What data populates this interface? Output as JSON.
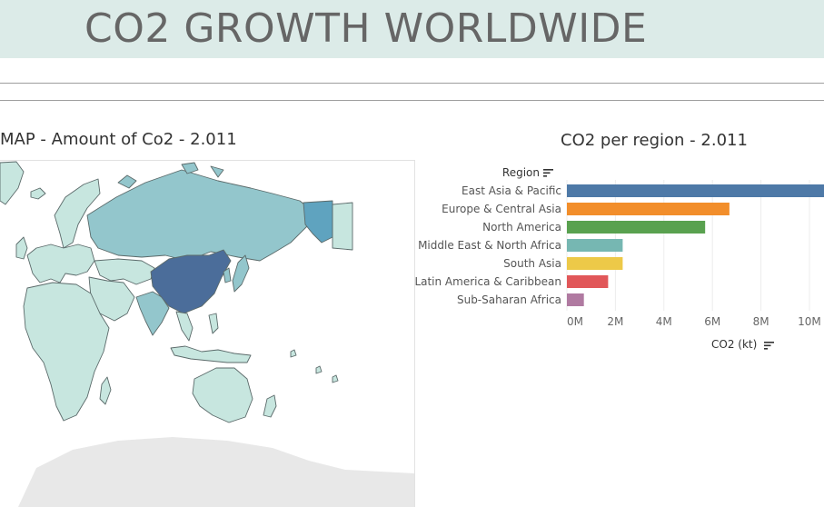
{
  "header": {
    "title": "CO2 GROWTH WORLDWIDE"
  },
  "map": {
    "title": "MAP - Amount of Co2  - 2.011",
    "colors": {
      "low": "#c7e6df",
      "mid": "#93c6cc",
      "high": "#5fa3bf",
      "max": "#4b6d9a",
      "land_outline": "#5b6a6a",
      "antarctica": "#e8e8e8"
    }
  },
  "chart_data": {
    "type": "bar",
    "orientation": "horizontal",
    "title": "CO2 per region - 2.011",
    "dimension_label": "Region",
    "xlabel": "CO2 (kt)",
    "categories": [
      "East Asia & Pacific",
      "Europe & Central Asia",
      "North America",
      "Middle East & North Africa",
      "South Asia",
      "Latin America & Caribbean",
      "Sub-Saharan Africa"
    ],
    "values": [
      10600000,
      6700000,
      5700000,
      2300000,
      2300000,
      1700000,
      700000
    ],
    "colors": [
      "#4e79a7",
      "#f28e2b",
      "#59a14f",
      "#76b7b2",
      "#edc948",
      "#e15759",
      "#b07aa1"
    ],
    "xticks": [
      "0M",
      "2M",
      "4M",
      "6M",
      "8M",
      "10M"
    ],
    "xlim": [
      0,
      10600000
    ],
    "grid": true
  }
}
